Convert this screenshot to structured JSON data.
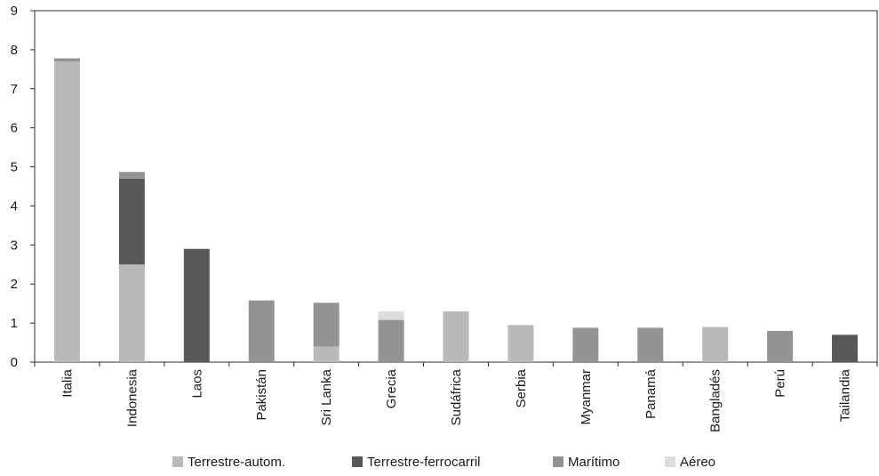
{
  "chart_data": {
    "type": "bar",
    "stacked": true,
    "categories": [
      "Italia",
      "Indonesia",
      "Laos",
      "Pakistán",
      "Sri Lanka",
      "Grecia",
      "Sudáfrica",
      "Serbia",
      "Myanmar",
      "Panamá",
      "Bangladés",
      "Perú",
      "Tailandia"
    ],
    "series": [
      {
        "name": "Terrestre-autom.",
        "color": "#b9b9b9",
        "values": [
          7.7,
          2.5,
          0,
          0,
          0.4,
          0,
          1.3,
          0.95,
          0,
          0,
          0.9,
          0,
          0
        ]
      },
      {
        "name": "Terrestre-ferrocarril",
        "color": "#58585a",
        "values": [
          0,
          2.2,
          2.9,
          0,
          0,
          0,
          0,
          0,
          0,
          0,
          0,
          0,
          0.7
        ]
      },
      {
        "name": "Marítimo",
        "color": "#939393",
        "values": [
          0.08,
          0.17,
          0,
          1.58,
          1.12,
          1.08,
          0,
          0,
          0.88,
          0.88,
          0,
          0.8,
          0
        ]
      },
      {
        "name": "Aéreo",
        "color": "#dcdcdc",
        "values": [
          0,
          0,
          0,
          0,
          0,
          0.22,
          0,
          0,
          0,
          0,
          0,
          0,
          0
        ]
      }
    ],
    "yticks": [
      "0",
      "1",
      "2",
      "3",
      "4",
      "5",
      "6",
      "7",
      "8",
      "9"
    ],
    "ylim": [
      0,
      9
    ],
    "grid": false,
    "legend_position": "bottom"
  }
}
